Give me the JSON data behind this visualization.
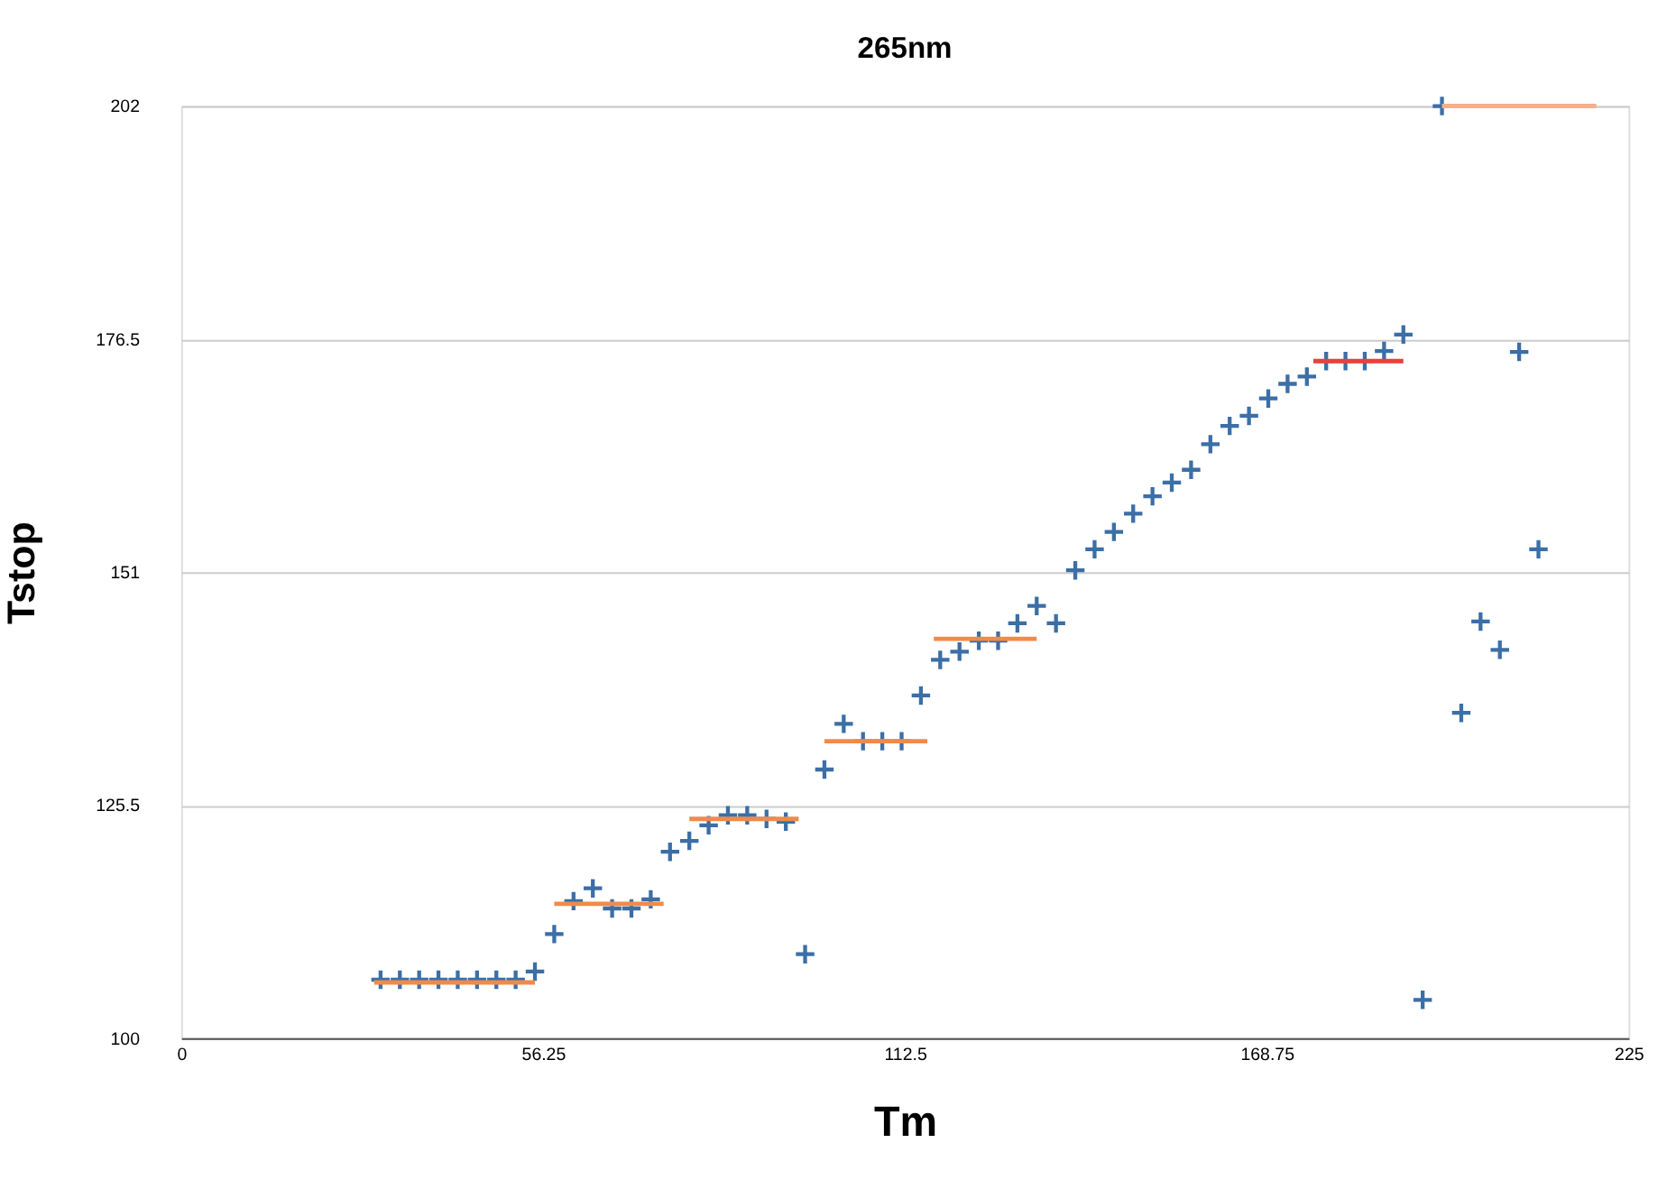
{
  "chart_data": {
    "type": "scatter",
    "title": "265nm",
    "xlabel": "Tm",
    "ylabel": "Tstop",
    "xlim": [
      0,
      225
    ],
    "xticks": [
      0,
      56.25,
      112.5,
      168.75,
      225
    ],
    "ylim": [
      100,
      202
    ],
    "yticks": [
      100,
      125.5,
      151,
      176.5,
      202
    ],
    "grid": "y",
    "series": [
      {
        "marker": "cross",
        "color": "#3b6fa6",
        "x": [
          31,
          34,
          37,
          40,
          43,
          46,
          49,
          52,
          55,
          58,
          61,
          64,
          67,
          70,
          73,
          76,
          79,
          82,
          85,
          88,
          91,
          94,
          97,
          100,
          103,
          106,
          109,
          112,
          115,
          118,
          121,
          124,
          127,
          130,
          133,
          136,
          139,
          142,
          145,
          148,
          151,
          154,
          157,
          160,
          163,
          166,
          169,
          172,
          175,
          178,
          181,
          184,
          187,
          190,
          193,
          196,
          199,
          202,
          205,
          208,
          211
        ],
        "values": [
          106.4,
          106.4,
          106.4,
          106.4,
          106.4,
          106.4,
          106.4,
          106.4,
          107.3,
          111.4,
          115,
          116.4,
          114.2,
          114.2,
          115.2,
          120.4,
          121.6,
          123.3,
          124.4,
          124.4,
          124,
          123.7,
          109.2,
          129.4,
          134.4,
          132.5,
          132.5,
          132.5,
          137.5,
          141.4,
          142.3,
          143.5,
          143.5,
          145.4,
          147.3,
          145.4,
          151.2,
          153.5,
          155.4,
          157.4,
          159.3,
          160.8,
          162.2,
          165,
          167,
          168.1,
          170,
          171.6,
          172.4,
          174.1,
          174.1,
          174.1,
          175.2,
          177,
          104.2,
          202,
          135.6,
          145.6,
          142.5,
          175.1,
          153.5
        ]
      },
      {
        "type": "line",
        "color": "#f08a4b",
        "x": [
          30,
          55
        ],
        "values": [
          106.1,
          106.1
        ]
      },
      {
        "type": "line",
        "color": "#f08a4b",
        "x": [
          58,
          75
        ],
        "values": [
          114.7,
          114.7
        ]
      },
      {
        "type": "line",
        "color": "#f08a4b",
        "x": [
          79,
          96
        ],
        "values": [
          124,
          124
        ]
      },
      {
        "type": "line",
        "color": "#f08a4b",
        "x": [
          100,
          116
        ],
        "values": [
          132.5,
          132.5
        ]
      },
      {
        "type": "line",
        "color": "#f08a4b",
        "x": [
          117,
          133
        ],
        "values": [
          143.7,
          143.7
        ]
      },
      {
        "type": "line",
        "color": "#e8413b",
        "x": [
          176,
          190
        ],
        "values": [
          174.1,
          174.1
        ]
      },
      {
        "type": "line",
        "color": "#f3b08c",
        "x": [
          196,
          220
        ],
        "values": [
          202,
          202
        ]
      }
    ]
  }
}
